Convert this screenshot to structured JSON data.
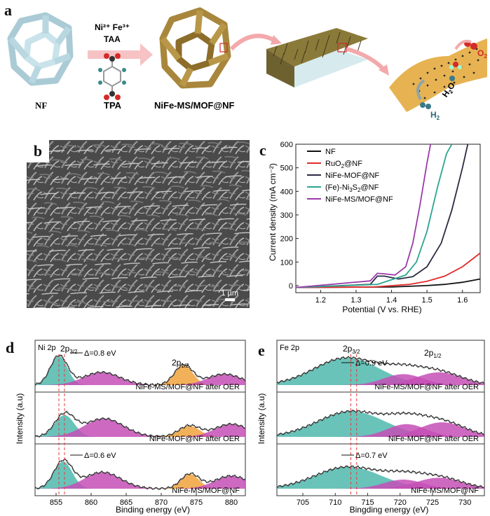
{
  "panel_a": {
    "letter": "a",
    "ions": "Ni²⁺ Fe³⁺",
    "taa": "TAA",
    "tpa": "TPA",
    "nf": "NF",
    "product": "NiFe-MS/MOF@NF",
    "o2": "O",
    "o2_sub": "2",
    "h2o": "H",
    "h2o_sub": "2",
    "h2o_o": "O",
    "h2": "H",
    "h2_sub": "2"
  },
  "panel_b": {
    "letter": "b",
    "scale_label": "1 µm"
  },
  "panel_c": {
    "letter": "c",
    "chart_data": {
      "type": "line",
      "xlabel": "Potential (V vs. RHE)",
      "ylabel": "Current density (mA cm⁻²)",
      "xlim": [
        1.13,
        1.65
      ],
      "ylim": [
        -30,
        600
      ],
      "xticks": [
        1.2,
        1.3,
        1.4,
        1.5,
        1.6
      ],
      "yticks": [
        0,
        100,
        200,
        300,
        400,
        500,
        600
      ],
      "legend": "top-left",
      "series": [
        {
          "name": "NF",
          "color": "#111111",
          "x": [
            1.13,
            1.4,
            1.5,
            1.55,
            1.6,
            1.65
          ],
          "y": [
            -8,
            -6,
            0,
            5,
            14,
            28
          ]
        },
        {
          "name": "RuO₂@NF",
          "color": "#e32b2b",
          "x": [
            1.13,
            1.35,
            1.45,
            1.5,
            1.55,
            1.6,
            1.65
          ],
          "y": [
            -8,
            -6,
            5,
            18,
            40,
            80,
            138
          ]
        },
        {
          "name": "NiFe-MOF@NF",
          "color": "#2b2b44",
          "x": [
            1.13,
            1.34,
            1.36,
            1.38,
            1.42,
            1.46,
            1.5,
            1.54,
            1.57,
            1.6,
            1.615
          ],
          "y": [
            -8,
            5,
            40,
            40,
            28,
            38,
            80,
            180,
            320,
            500,
            600
          ]
        },
        {
          "name": "(Fe)-Ni₃S₂@NF",
          "color": "#2aa58e",
          "x": [
            1.13,
            1.36,
            1.4,
            1.44,
            1.47,
            1.5,
            1.53,
            1.555,
            1.57
          ],
          "y": [
            -8,
            5,
            25,
            45,
            100,
            230,
            420,
            560,
            600
          ]
        },
        {
          "name": "NiFe-MS/MOF@NF",
          "color": "#9a3aa8",
          "x": [
            1.13,
            1.34,
            1.36,
            1.38,
            1.41,
            1.44,
            1.46,
            1.48,
            1.5,
            1.51
          ],
          "y": [
            -8,
            20,
            52,
            50,
            45,
            80,
            180,
            340,
            520,
            600
          ]
        }
      ]
    },
    "legend_items": [
      "NF",
      "RuO",
      "NiFe-MOF@NF",
      "(Fe)-Ni",
      "NiFe-MS/MOF@NF"
    ],
    "legend_ruo_sub": "2",
    "legend_ruo_tail": "@NF",
    "legend_fe_sub3": "3",
    "legend_fe_mid": "S",
    "legend_fe_sub2": "2",
    "legend_fe_tail": "@NF"
  },
  "panel_d": {
    "letter": "d",
    "title": "Ni 2p",
    "peak_32": "2p",
    "peak_32_sub": "3/2",
    "peak_12": "2p",
    "peak_12_sub": "1/2",
    "delta_top": "Δ=0.8 eV",
    "delta_bottom": "Δ=0.6 eV",
    "labels": [
      "NiFe-MS/MOF@NF after OER",
      "NiFe-MOF@NF after OER",
      "NiFe-MS/MOF@NF"
    ],
    "xlabel": "Binding energy (eV)",
    "ylabel": "Intensity (a.u)",
    "xticks": [
      "855",
      "860",
      "865",
      "870",
      "875",
      "880"
    ]
  },
  "panel_e": {
    "letter": "e",
    "title": "Fe 2p",
    "peak_32": "2p",
    "peak_32_sub": "3/2",
    "peak_12": "2p",
    "peak_12_sub": "1/2",
    "delta_top": "Δ=0.9 eV",
    "delta_bottom": "Δ=0.7 eV",
    "labels": [
      "NiFe-MS/MOF@NF after OER",
      "NiFe-MOF@NF after OER",
      "NiFe-MS/MOF@NF"
    ],
    "xlabel": "Bingding energy (eV)",
    "ylabel": "Intensity (a.u)",
    "xticks": [
      "705",
      "710",
      "715",
      "720",
      "725",
      "730"
    ]
  },
  "colors": {
    "teal": "#4fb9ad",
    "magenta": "#c64fb6",
    "orange": "#f0a23c",
    "nf_blue": "#c9e3ea",
    "mof_gold": "#a8873c"
  }
}
